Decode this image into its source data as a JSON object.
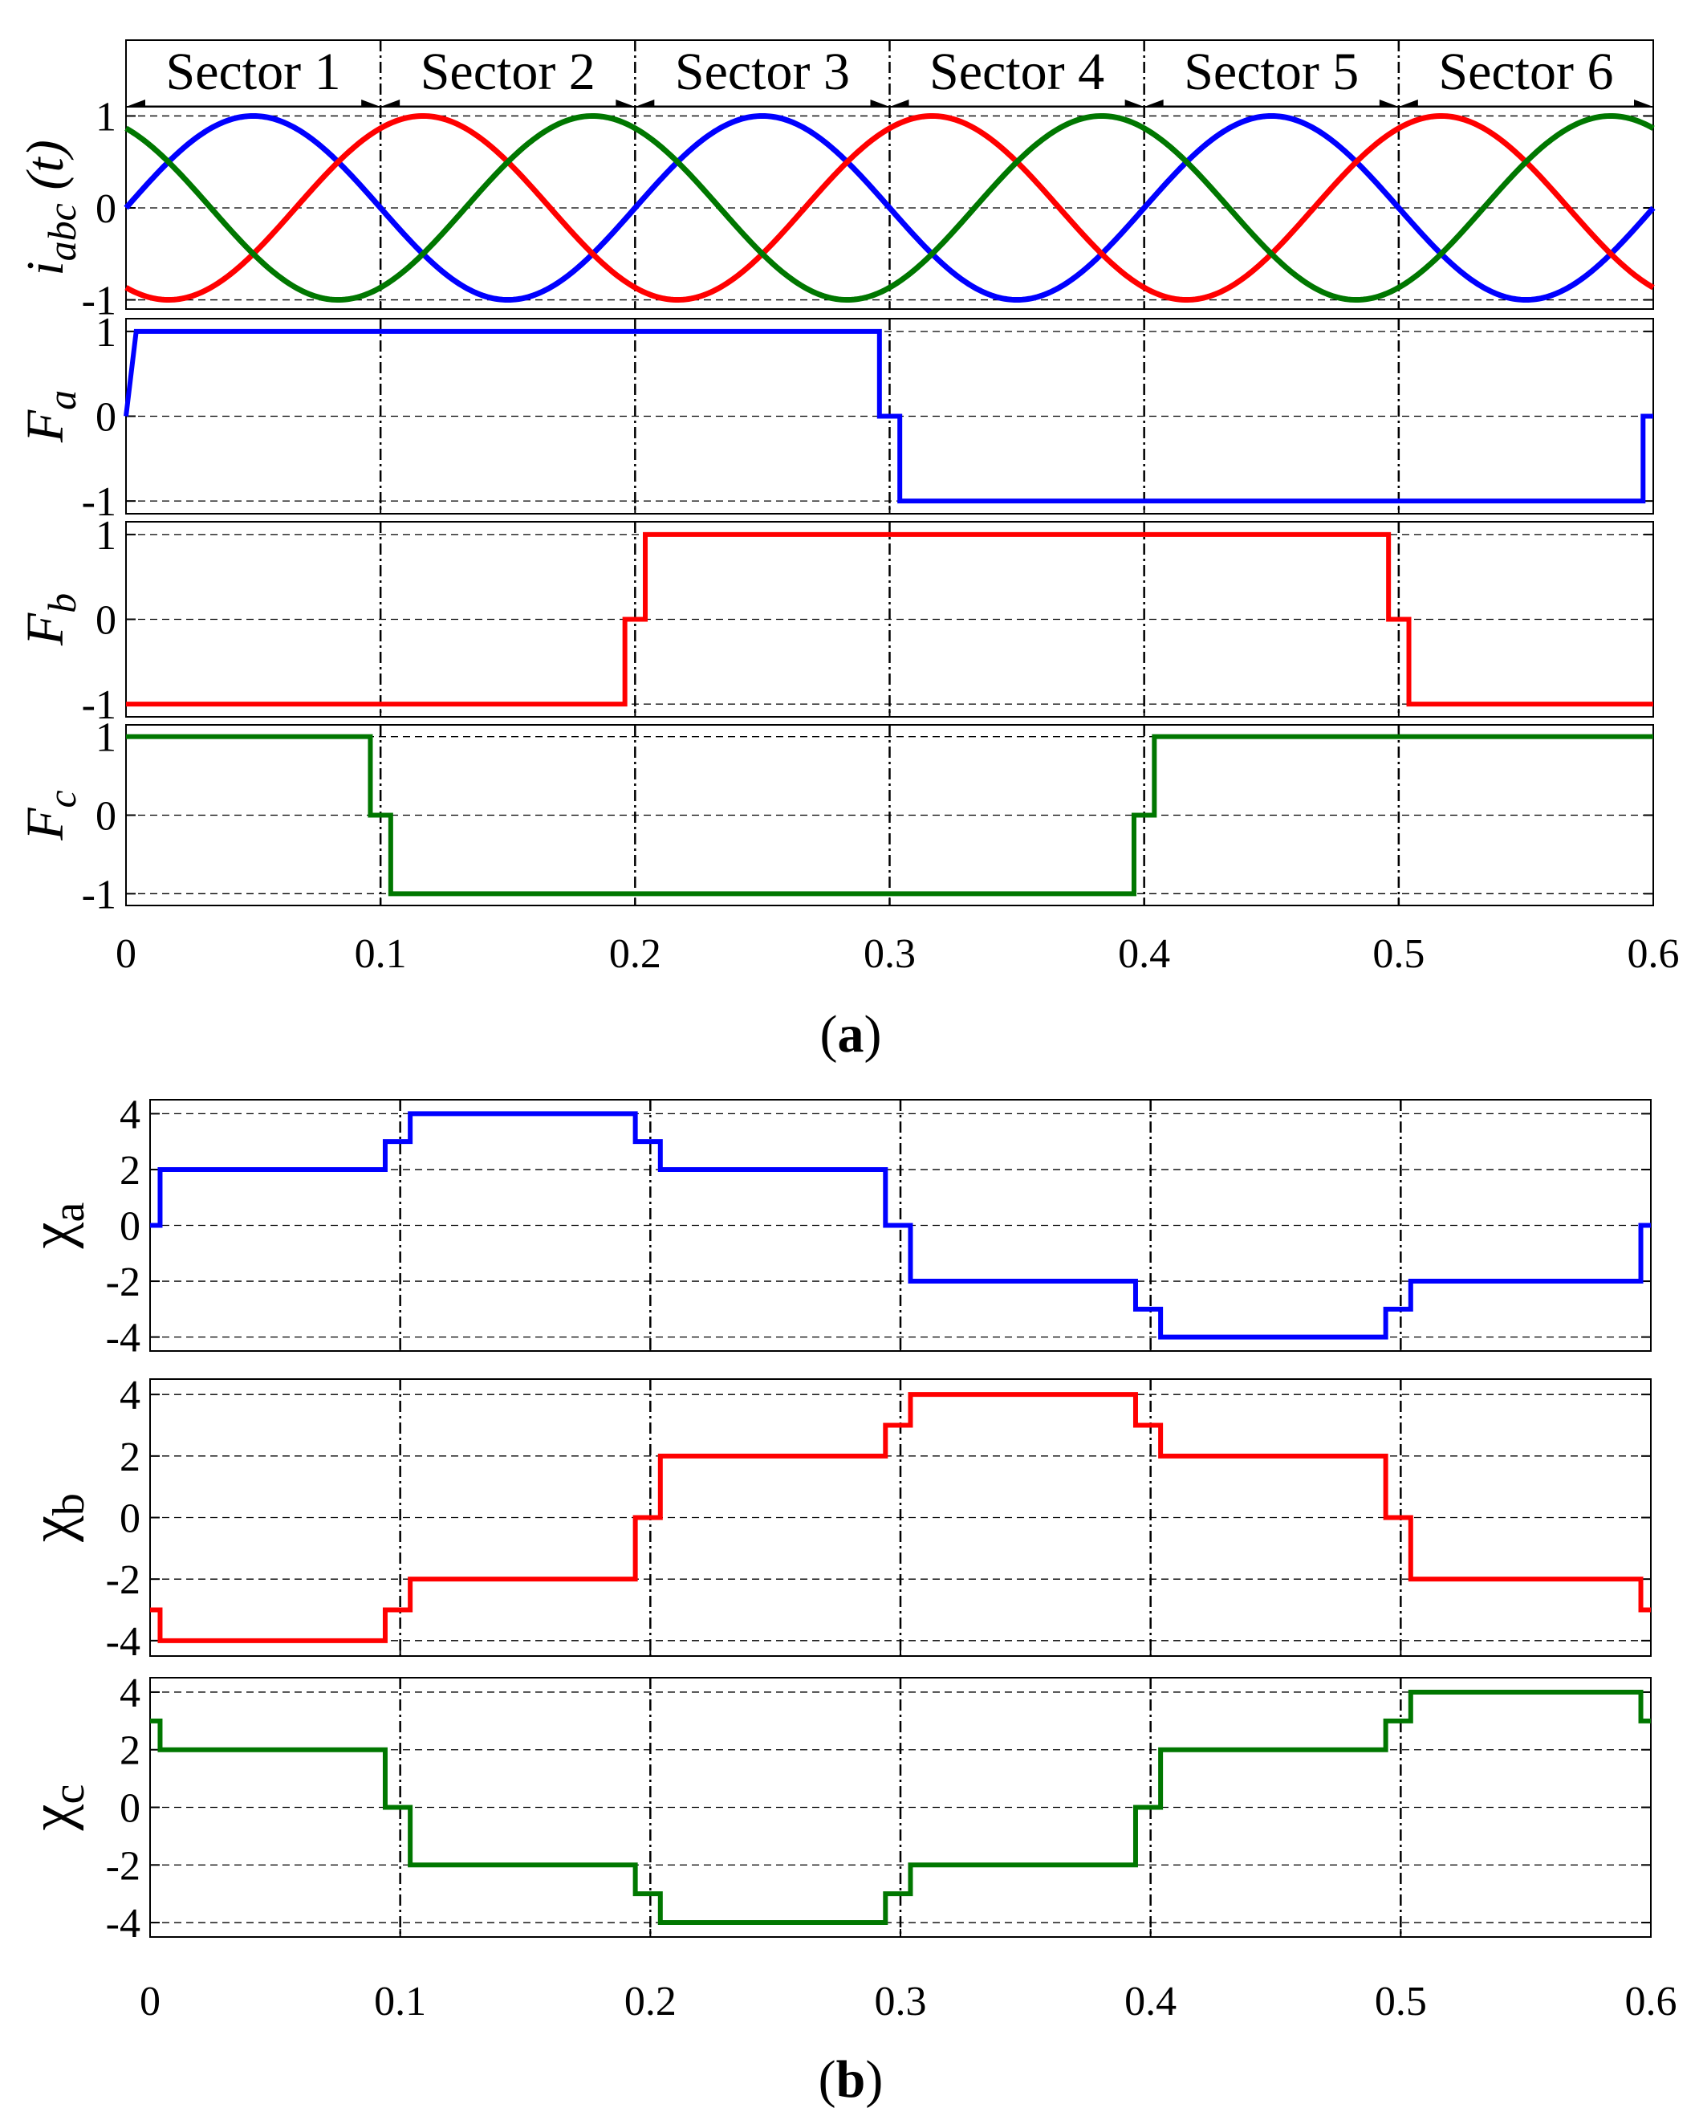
{
  "chart_data": [
    {
      "type": "line",
      "panel": "(a)",
      "panel_label": {
        "open": "(",
        "letter": "a",
        "close": ")"
      },
      "xlim": [
        0,
        0.6
      ],
      "xticks": [
        "0",
        "0.1",
        "0.2",
        "0.3",
        "0.4",
        "0.5",
        "0.6"
      ],
      "sector_boundaries": [
        0.1,
        0.2,
        0.3,
        0.4,
        0.5
      ],
      "sectors": [
        "Sector 1",
        "Sector 2",
        "Sector 3",
        "Sector 4",
        "Sector 5",
        "Sector 6"
      ],
      "subplots": [
        {
          "id": "iabc",
          "ylabel_main": "i",
          "ylabel_sub": "abc",
          "ylabel_suffix": "(t)",
          "ylim": [
            -1.1,
            1.1
          ],
          "yticks": [
            "1",
            "0",
            "-1"
          ],
          "ytick_values": [
            1,
            0,
            -1
          ],
          "grid": "dashed at 1, 0, -1",
          "series": [
            {
              "color": "#0000ff",
              "function": "sin",
              "phase_deg": 0,
              "amplitude": 1,
              "frequency_hz": 5
            },
            {
              "color": "#ff0000",
              "function": "sin",
              "phase_deg": -120,
              "amplitude": 1,
              "frequency_hz": 5
            },
            {
              "color": "#007700",
              "function": "sin",
              "phase_deg": 120,
              "amplitude": 1,
              "frequency_hz": 5
            }
          ]
        },
        {
          "id": "Fa",
          "ylabel_main": "F",
          "ylabel_sub": "a",
          "ylim": [
            -1.15,
            1.15
          ],
          "yticks": [
            "1",
            "0",
            "-1"
          ],
          "ytick_values": [
            1,
            0,
            -1
          ],
          "series": [
            {
              "color": "#0000ff",
              "step_points": [
                [
                  0,
                  0
                ],
                [
                  0.004,
                  1
                ],
                [
                  0.296,
                  1
                ],
                [
                  0.296,
                  0
                ],
                [
                  0.304,
                  0
                ],
                [
                  0.304,
                  -1
                ],
                [
                  0.596,
                  -1
                ],
                [
                  0.596,
                  0
                ],
                [
                  0.6,
                  0
                ]
              ]
            }
          ]
        },
        {
          "id": "Fb",
          "ylabel_main": "F",
          "ylabel_sub": "b",
          "ylim": [
            -1.15,
            1.15
          ],
          "yticks": [
            "1",
            "0",
            "-1"
          ],
          "ytick_values": [
            1,
            0,
            -1
          ],
          "series": [
            {
              "color": "#ff0000",
              "step_points": [
                [
                  0,
                  -1
                ],
                [
                  0.196,
                  -1
                ],
                [
                  0.196,
                  0
                ],
                [
                  0.204,
                  0
                ],
                [
                  0.204,
                  1
                ],
                [
                  0.496,
                  1
                ],
                [
                  0.496,
                  0
                ],
                [
                  0.504,
                  0
                ],
                [
                  0.504,
                  -1
                ],
                [
                  0.6,
                  -1
                ]
              ]
            }
          ]
        },
        {
          "id": "Fc",
          "ylabel_main": "F",
          "ylabel_sub": "c",
          "ylim": [
            -1.15,
            1.15
          ],
          "yticks": [
            "1",
            "0",
            "-1"
          ],
          "ytick_values": [
            1,
            0,
            -1
          ],
          "series": [
            {
              "color": "#007700",
              "step_points": [
                [
                  0,
                  1
                ],
                [
                  0.096,
                  1
                ],
                [
                  0.096,
                  0
                ],
                [
                  0.104,
                  0
                ],
                [
                  0.104,
                  -1
                ],
                [
                  0.396,
                  -1
                ],
                [
                  0.396,
                  0
                ],
                [
                  0.404,
                  0
                ],
                [
                  0.404,
                  1
                ],
                [
                  0.6,
                  1
                ]
              ]
            }
          ]
        }
      ]
    },
    {
      "type": "line",
      "panel": "(b)",
      "panel_label": {
        "open": "(",
        "letter": "b",
        "close": ")"
      },
      "xlim": [
        0,
        0.6
      ],
      "xticks": [
        "0",
        "0.1",
        "0.2",
        "0.3",
        "0.4",
        "0.5",
        "0.6"
      ],
      "sector_boundaries": [
        0.1,
        0.2,
        0.3,
        0.4,
        0.5
      ],
      "subplots": [
        {
          "id": "xa",
          "ylabel_main": "χ",
          "ylabel_sub": "a",
          "ylim": [
            -4.5,
            4.5
          ],
          "yticks": [
            "4",
            "2",
            "0",
            "-2",
            "-4"
          ],
          "ytick_values": [
            4,
            2,
            0,
            -2,
            -4
          ],
          "series": [
            {
              "color": "#0000ff",
              "step_points": [
                [
                  0,
                  0
                ],
                [
                  0.004,
                  0
                ],
                [
                  0.004,
                  2
                ],
                [
                  0.094,
                  2
                ],
                [
                  0.094,
                  3
                ],
                [
                  0.104,
                  3
                ],
                [
                  0.104,
                  4
                ],
                [
                  0.194,
                  4
                ],
                [
                  0.194,
                  3
                ],
                [
                  0.204,
                  3
                ],
                [
                  0.204,
                  2
                ],
                [
                  0.294,
                  2
                ],
                [
                  0.294,
                  0
                ],
                [
                  0.304,
                  0
                ],
                [
                  0.304,
                  -2
                ],
                [
                  0.394,
                  -2
                ],
                [
                  0.394,
                  -3
                ],
                [
                  0.404,
                  -3
                ],
                [
                  0.404,
                  -4
                ],
                [
                  0.494,
                  -4
                ],
                [
                  0.494,
                  -3
                ],
                [
                  0.504,
                  -3
                ],
                [
                  0.504,
                  -2
                ],
                [
                  0.596,
                  -2
                ],
                [
                  0.596,
                  0
                ],
                [
                  0.6,
                  0
                ]
              ]
            }
          ]
        },
        {
          "id": "xb",
          "ylabel_main": "χ",
          "ylabel_sub": "b",
          "ylim": [
            -4.5,
            4.5
          ],
          "yticks": [
            "4",
            "2",
            "0",
            "-2",
            "-4"
          ],
          "ytick_values": [
            4,
            2,
            0,
            -2,
            -4
          ],
          "series": [
            {
              "color": "#ff0000",
              "step_points": [
                [
                  0,
                  -3
                ],
                [
                  0.004,
                  -3
                ],
                [
                  0.004,
                  -4
                ],
                [
                  0.094,
                  -4
                ],
                [
                  0.094,
                  -3
                ],
                [
                  0.104,
                  -3
                ],
                [
                  0.104,
                  -2
                ],
                [
                  0.194,
                  -2
                ],
                [
                  0.194,
                  0
                ],
                [
                  0.204,
                  0
                ],
                [
                  0.204,
                  2
                ],
                [
                  0.294,
                  2
                ],
                [
                  0.294,
                  3
                ],
                [
                  0.304,
                  3
                ],
                [
                  0.304,
                  4
                ],
                [
                  0.394,
                  4
                ],
                [
                  0.394,
                  3
                ],
                [
                  0.404,
                  3
                ],
                [
                  0.404,
                  2
                ],
                [
                  0.494,
                  2
                ],
                [
                  0.494,
                  0
                ],
                [
                  0.504,
                  0
                ],
                [
                  0.504,
                  -2
                ],
                [
                  0.596,
                  -2
                ],
                [
                  0.596,
                  -3
                ],
                [
                  0.6,
                  -3
                ]
              ]
            }
          ]
        },
        {
          "id": "xc",
          "ylabel_main": "χ",
          "ylabel_sub": "c",
          "ylim": [
            -4.5,
            4.5
          ],
          "yticks": [
            "4",
            "2",
            "0",
            "-2",
            "-4"
          ],
          "ytick_values": [
            4,
            2,
            0,
            -2,
            -4
          ],
          "series": [
            {
              "color": "#007700",
              "step_points": [
                [
                  0,
                  3
                ],
                [
                  0.004,
                  3
                ],
                [
                  0.004,
                  2
                ],
                [
                  0.094,
                  2
                ],
                [
                  0.094,
                  0
                ],
                [
                  0.104,
                  0
                ],
                [
                  0.104,
                  -2
                ],
                [
                  0.194,
                  -2
                ],
                [
                  0.194,
                  -3
                ],
                [
                  0.204,
                  -3
                ],
                [
                  0.204,
                  -4
                ],
                [
                  0.294,
                  -4
                ],
                [
                  0.294,
                  -3
                ],
                [
                  0.304,
                  -3
                ],
                [
                  0.304,
                  -2
                ],
                [
                  0.394,
                  -2
                ],
                [
                  0.394,
                  0
                ],
                [
                  0.404,
                  0
                ],
                [
                  0.404,
                  2
                ],
                [
                  0.494,
                  2
                ],
                [
                  0.494,
                  3
                ],
                [
                  0.504,
                  3
                ],
                [
                  0.504,
                  4
                ],
                [
                  0.596,
                  4
                ],
                [
                  0.596,
                  3
                ],
                [
                  0.6,
                  3
                ]
              ]
            }
          ]
        }
      ]
    }
  ]
}
